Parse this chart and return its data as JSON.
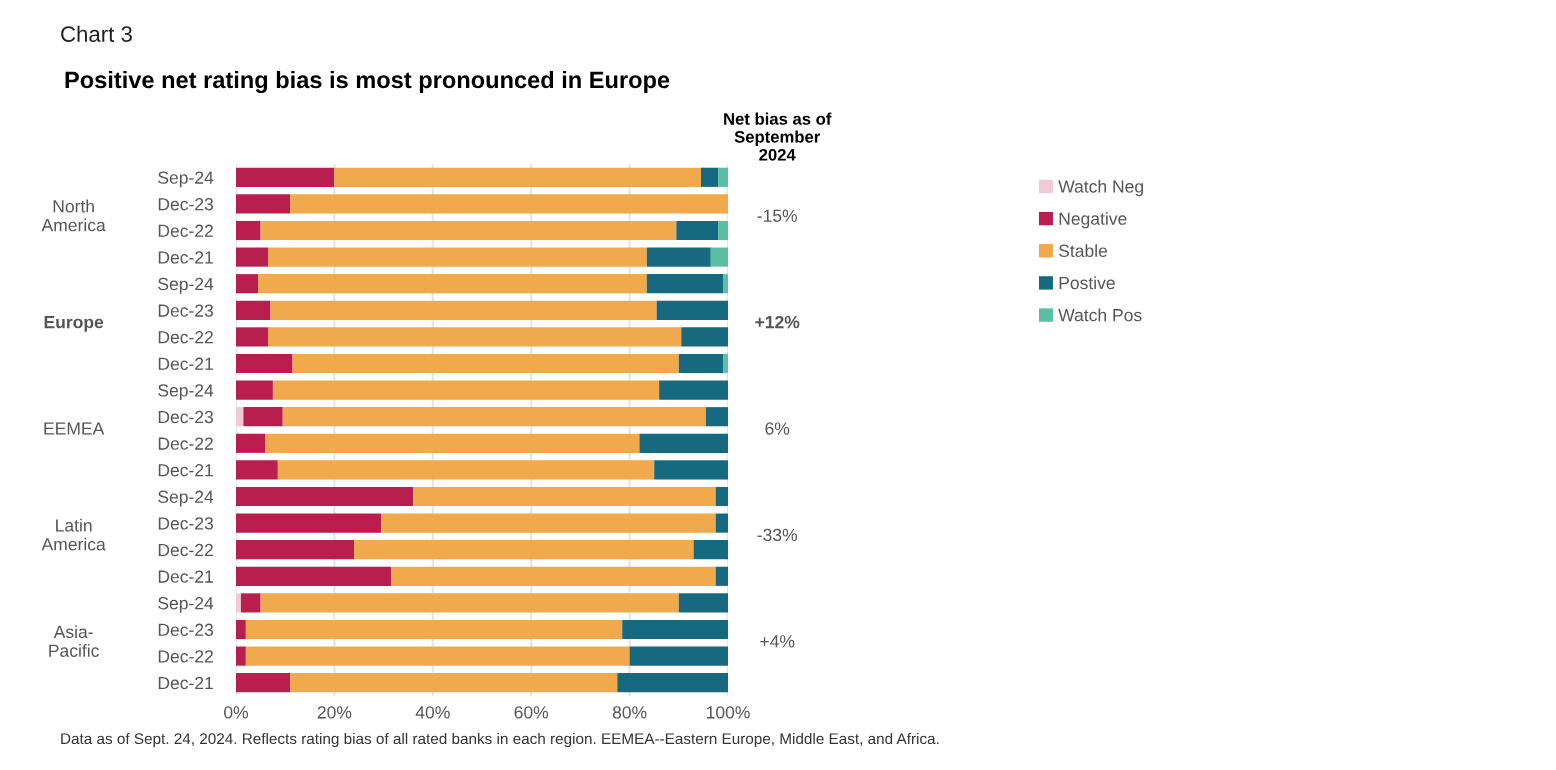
{
  "chart_data": {
    "type": "bar",
    "orientation": "horizontal",
    "stacked": true,
    "title": "Positive net rating bias is most pronounced in Europe",
    "subtitle": "Chart 3",
    "categories": [
      "Sep-24",
      "Dec-23",
      "Dec-22",
      "Dec-21",
      "Sep-24",
      "Dec-23",
      "Dec-22",
      "Dec-21",
      "Sep-24",
      "Dec-23",
      "Dec-22",
      "Dec-21",
      "Sep-24",
      "Dec-23",
      "Dec-22",
      "Dec-21",
      "Sep-24",
      "Dec-23",
      "Dec-22",
      "Dec-21"
    ],
    "series": [
      {
        "name": "Watch Neg",
        "color": "#f2c9d6",
        "values": [
          0,
          0,
          0,
          0,
          0,
          0,
          0,
          0,
          0,
          1.5,
          0,
          0,
          0,
          0,
          0,
          0,
          1,
          0,
          0,
          0
        ]
      },
      {
        "name": "Negative",
        "color": "#b81f4f",
        "values": [
          20,
          11,
          5,
          6.5,
          4.5,
          7,
          6.5,
          11.5,
          7.5,
          8,
          6,
          8.5,
          36,
          29.5,
          24,
          31.5,
          4,
          2,
          2,
          11
        ]
      },
      {
        "name": "Stable",
        "color": "#f0a94d",
        "values": [
          74.5,
          89,
          84.5,
          77,
          79,
          78.5,
          84,
          78.5,
          78.5,
          86,
          76,
          76.5,
          61.5,
          68,
          69,
          66,
          85,
          76.5,
          78,
          66.5
        ]
      },
      {
        "name": "Postive",
        "color": "#17697f",
        "values": [
          3.5,
          0,
          8.5,
          13,
          15.5,
          14.5,
          9.5,
          9,
          14,
          4.5,
          18,
          15,
          2.5,
          2.5,
          7,
          2.5,
          10,
          21.5,
          20,
          22.5
        ]
      },
      {
        "name": "Watch Pos",
        "color": "#5bbfa3",
        "values": [
          2,
          0,
          2,
          3.5,
          1,
          0,
          0,
          1,
          0,
          0,
          0,
          0,
          0,
          0,
          0,
          0,
          0,
          0,
          0,
          0
        ]
      }
    ],
    "xlim": [
      0,
      100
    ],
    "xticks": [
      {
        "value": 0,
        "label": "0%"
      },
      {
        "value": 20,
        "label": "20%"
      },
      {
        "value": 40,
        "label": "40%"
      },
      {
        "value": 60,
        "label": "60%"
      },
      {
        "value": 80,
        "label": "80%"
      },
      {
        "value": 100,
        "label": "100%"
      }
    ],
    "grid": "x",
    "legend": "right",
    "annotations": [
      "North\nAmerica",
      "Europe",
      "EEMEA",
      "Latin\nAmerica",
      "Asia-\nPacific",
      "Net bias as of\nSeptember\n2024",
      "-15%",
      "+12%",
      "6%",
      "-33%",
      "+4%",
      "Data as of Sept. 24, 2024. Reflects rating bias of all rated banks in each region. EEMEA--Eastern Europe, Middle East, and Africa."
    ]
  }
}
